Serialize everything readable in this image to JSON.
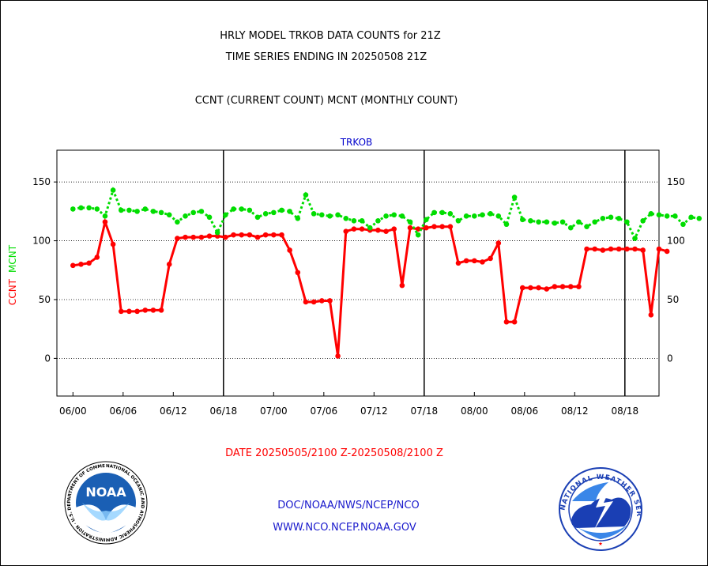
{
  "header": {
    "line1": "HRLY MODEL TRKOB DATA COUNTS for 21Z",
    "line2": "TIME SERIES ENDING IN 20250508 21Z",
    "line3": "CCNT (CURRENT COUNT) MCNT (MONTHLY COUNT)"
  },
  "footer": {
    "date_range": "DATE 20250505/2100 Z-20250508/2100 Z",
    "link1": "DOC/NOAA/NWS/NCEP/NCO",
    "link2": "WWW.NCO.NCEP.NOAA.GOV"
  },
  "logos": {
    "noaa_text": "NOAA",
    "noaa_ring": "NATIONAL OCEANIC AND ATMOSPHERIC ADMINISTRATION · U.S. DEPARTMENT OF COMMERCE",
    "nws_ring": "NATIONAL WEATHER SERVICE"
  },
  "colors": {
    "ccnt": "#ff0000",
    "mcnt": "#00dd00",
    "title": "#0000cc",
    "axis": "#000000"
  },
  "chart_data": {
    "type": "line",
    "title": "TRKOB",
    "ylabel_ccnt": "CCNT",
    "ylabel_mcnt": "MCNT",
    "ylim": [
      -32,
      177
    ],
    "yticks": [
      0,
      50,
      100,
      150
    ],
    "ytick_labels": [
      "0",
      "50",
      "100",
      "150"
    ],
    "xlim": [
      -1.6,
      58.4
    ],
    "xticks": [
      0,
      5,
      10,
      15,
      20,
      25,
      30,
      35,
      40,
      45,
      50,
      55
    ],
    "xtick_labels": [
      "06/00",
      "06/06",
      "06/12",
      "06/18",
      "07/00",
      "07/06",
      "07/12",
      "07/18",
      "08/00",
      "08/06",
      "08/12",
      "08/18"
    ],
    "day_boundaries": [
      15,
      35,
      55
    ],
    "grid": true,
    "series": [
      {
        "name": "CCNT",
        "key": "ccnt",
        "values": [
          79,
          80,
          81,
          86,
          116,
          97,
          40,
          40,
          40,
          41,
          41,
          41,
          80,
          102,
          103,
          103,
          103,
          104,
          104,
          103,
          105,
          105,
          105,
          103,
          105,
          105,
          105,
          92,
          73,
          48,
          48,
          49,
          49,
          2,
          108,
          110,
          110,
          109,
          109,
          108,
          110,
          62,
          111,
          110,
          111,
          112,
          112,
          112,
          81,
          83,
          83,
          82,
          85,
          98,
          31,
          31,
          60,
          60,
          60,
          59,
          61,
          61,
          61,
          61,
          93,
          93,
          92,
          93,
          93,
          93,
          93,
          92,
          37,
          93,
          91
        ]
      },
      {
        "name": "MCNT",
        "key": "mcnt",
        "values": [
          127,
          128,
          128,
          127,
          121,
          143,
          126,
          126,
          125,
          127,
          125,
          124,
          122,
          116,
          121,
          124,
          125,
          120,
          107,
          122,
          127,
          127,
          126,
          120,
          123,
          124,
          126,
          125,
          119,
          139,
          123,
          122,
          121,
          122,
          119,
          117,
          117,
          111,
          117,
          121,
          122,
          121,
          116,
          105,
          118,
          124,
          124,
          123,
          117,
          121,
          121,
          122,
          123,
          121,
          114,
          137,
          118,
          117,
          116,
          116,
          115,
          116,
          111,
          116,
          112,
          116,
          119,
          120,
          119,
          116,
          102,
          117,
          123,
          122,
          121,
          121,
          114,
          120,
          119
        ]
      }
    ]
  }
}
